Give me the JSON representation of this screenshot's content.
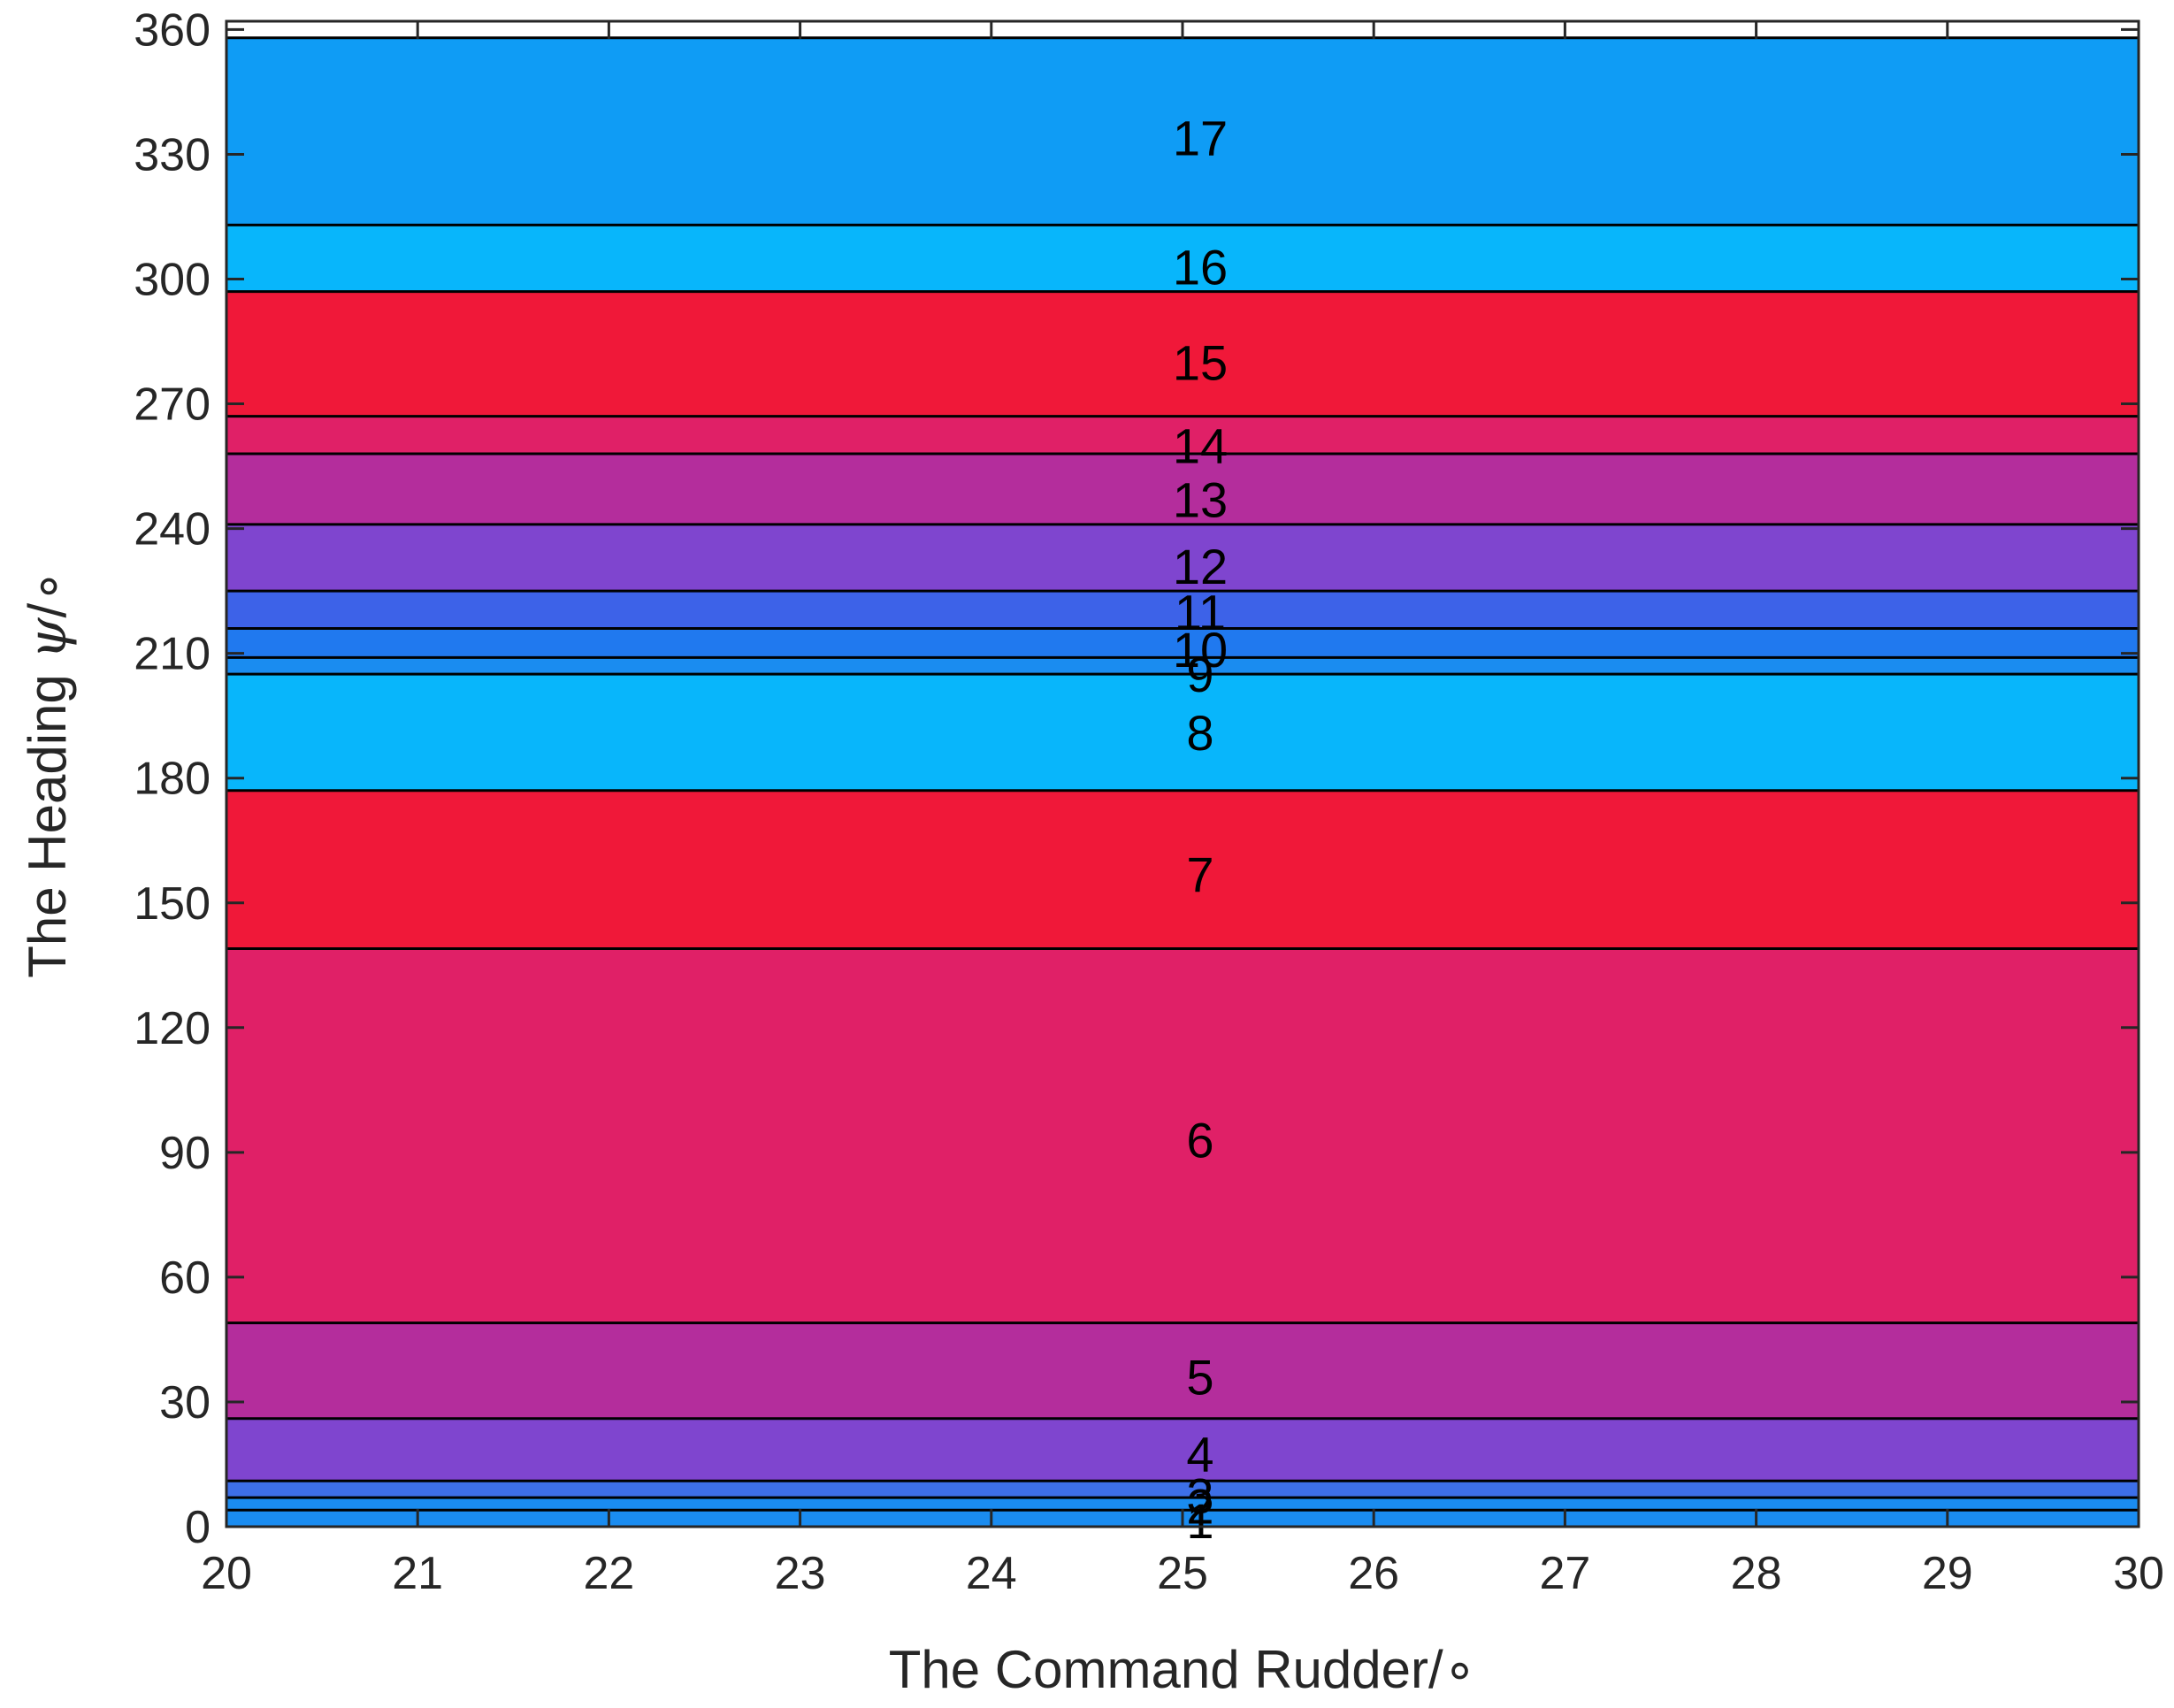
{
  "chart_data": {
    "type": "heatmap",
    "xlabel": "The Command Rudder/∘",
    "ylabel_text": "The Heading ",
    "ylabel_symbol": "ψ",
    "ylabel_unit": "/∘",
    "xlim": [
      20,
      30
    ],
    "ylim": [
      0,
      362
    ],
    "xticks": [
      20,
      21,
      22,
      23,
      24,
      25,
      26,
      27,
      28,
      29,
      30
    ],
    "yticks": [
      0,
      30,
      60,
      90,
      120,
      150,
      180,
      210,
      240,
      270,
      300,
      330,
      360
    ],
    "label_x": 25,
    "bands": [
      {
        "label": "1",
        "y0": 0,
        "y1": 4,
        "color": "#1a8cf0"
      },
      {
        "label": "2",
        "y0": 4,
        "y1": 7,
        "color": "#1a8cf0"
      },
      {
        "label": "3",
        "y0": 7,
        "y1": 11,
        "color": "#3d6fe8"
      },
      {
        "label": "4",
        "y0": 11,
        "y1": 26,
        "color": "#7f45cf"
      },
      {
        "label": "5",
        "y0": 26,
        "y1": 49,
        "color": "#b42d9c"
      },
      {
        "label": "6",
        "y0": 49,
        "y1": 139,
        "color": "#e02067"
      },
      {
        "label": "7",
        "y0": 139,
        "y1": 177,
        "color": "#f01839"
      },
      {
        "label": "8",
        "y0": 177,
        "y1": 205,
        "color": "#08b6fb"
      },
      {
        "label": "9",
        "y0": 205,
        "y1": 209,
        "color": "#1a8cf0"
      },
      {
        "label": "10",
        "y0": 209,
        "y1": 216,
        "color": "#2079ef"
      },
      {
        "label": "11",
        "y0": 216,
        "y1": 225,
        "color": "#3d62e8"
      },
      {
        "label": "12",
        "y0": 225,
        "y1": 241,
        "color": "#7f45cf"
      },
      {
        "label": "13",
        "y0": 241,
        "y1": 258,
        "color": "#b42d9c"
      },
      {
        "label": "14",
        "y0": 258,
        "y1": 267,
        "color": "#e02067"
      },
      {
        "label": "15",
        "y0": 267,
        "y1": 297,
        "color": "#f01839"
      },
      {
        "label": "16",
        "y0": 297,
        "y1": 313,
        "color": "#08b6fb"
      },
      {
        "label": "17",
        "y0": 313,
        "y1": 358,
        "color": "#0f9cf5"
      }
    ],
    "label_y": {
      "1": 1.5,
      "2": 5,
      "3": 7.5,
      "4": 17.5,
      "5": 36,
      "6": 93,
      "7": 157,
      "8": 191,
      "9": 205,
      "10": 211,
      "11": 220,
      "12": 231,
      "13": 247,
      "14": 260,
      "15": 280,
      "16": 303,
      "17": 334
    },
    "grid": false,
    "legend": "none"
  }
}
